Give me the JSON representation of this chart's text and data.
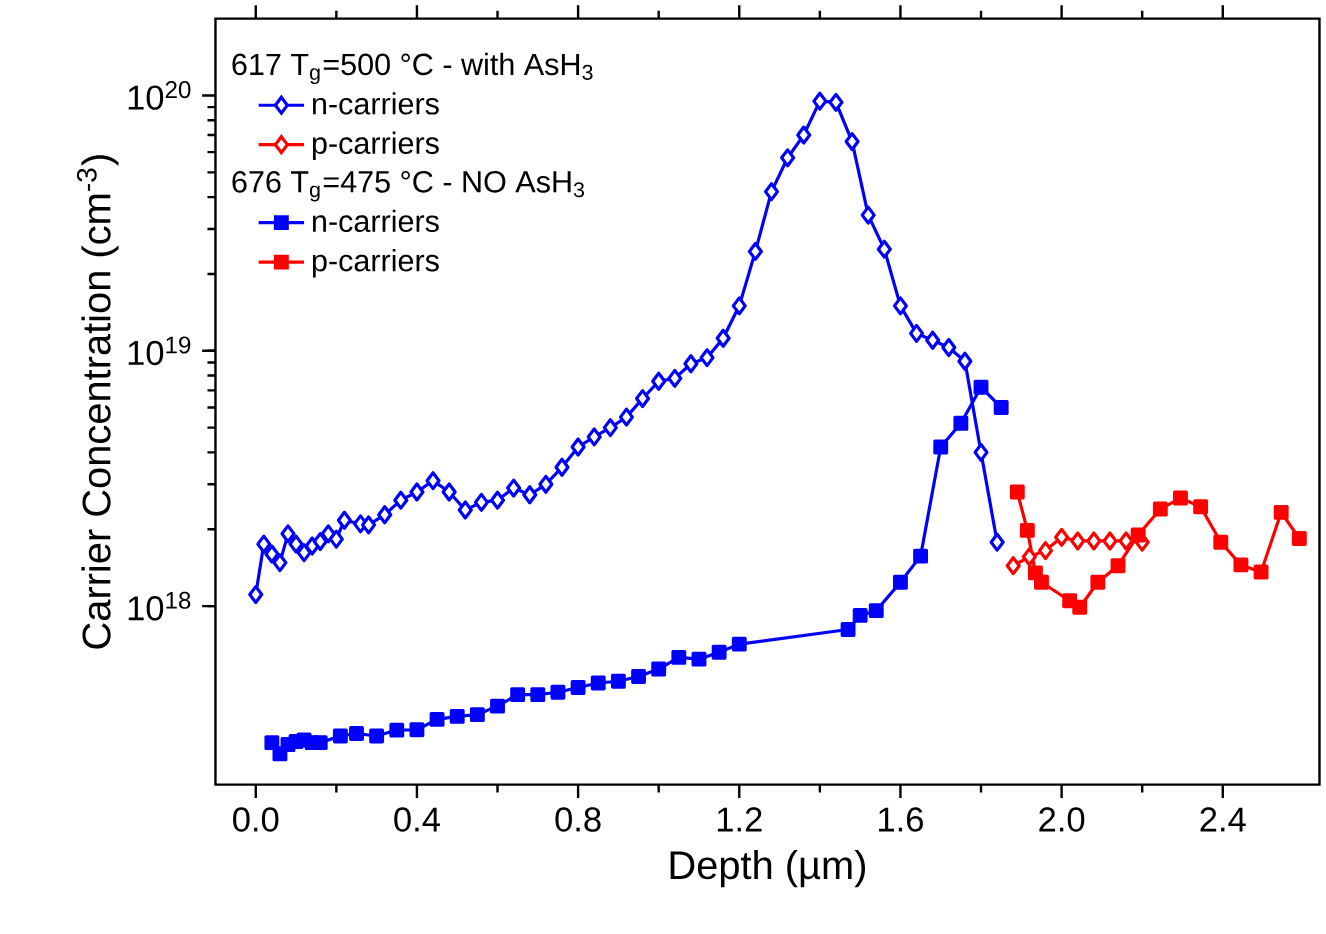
{
  "chart_data": {
    "type": "line",
    "xlabel": "Depth  (µm)",
    "ylabel": "Carrier Concentration  (cm$^{-3}$)",
    "annotations": [
      "617 T$_{g}$=500 °C - with AsH$_{3}$",
      "676 T$_{g}$=475 °C - NO AsH$_{3}$"
    ],
    "xlim": [
      -0.1,
      2.64
    ],
    "ylim": [
      2e+17,
      2e+20
    ],
    "log": "y",
    "grid": false,
    "legend": "top left",
    "line_style": "solid",
    "xticks": [
      {
        "value": 0,
        "label": "0.0"
      },
      {
        "value": 0.4,
        "label": "0.4"
      },
      {
        "value": 0.8,
        "label": "0.8"
      },
      {
        "value": 1.2,
        "label": "1.2"
      },
      {
        "value": 1.6,
        "label": "1.6"
      },
      {
        "value": 2.0,
        "label": "2.0"
      },
      {
        "value": 2.4,
        "label": "2.4"
      }
    ],
    "yticks": [
      {
        "value": 1e+18,
        "label": "10$^{18}$"
      },
      {
        "value": 1e+19,
        "label": "10$^{19}$"
      },
      {
        "value": 1e+20,
        "label": "10$^{20}$"
      }
    ],
    "series": [
      {
        "name": "n-carriers",
        "color": "#0000ff",
        "marker": "diamond",
        "x": [
          0.0,
          0.02,
          0.04,
          0.06,
          0.08,
          0.1,
          0.12,
          0.14,
          0.16,
          0.18,
          0.2,
          0.22,
          0.26,
          0.28,
          0.32,
          0.36,
          0.4,
          0.44,
          0.48,
          0.52,
          0.56,
          0.6,
          0.64,
          0.68,
          0.72,
          0.76,
          0.8,
          0.84,
          0.88,
          0.92,
          0.96,
          1.0,
          1.04,
          1.08,
          1.12,
          1.16,
          1.2,
          1.24,
          1.28,
          1.32,
          1.36,
          1.4,
          1.44,
          1.48,
          1.52,
          1.56,
          1.6,
          1.64,
          1.68,
          1.72,
          1.76,
          1.8,
          1.84
        ],
        "values": [
          1.11e+18,
          1.75e+18,
          1.6e+18,
          1.48e+18,
          1.92e+18,
          1.75e+18,
          1.62e+18,
          1.72e+18,
          1.79e+18,
          1.92e+18,
          1.83e+18,
          2.17e+18,
          2.1e+18,
          2.08e+18,
          2.28e+18,
          2.6e+18,
          2.8e+18,
          3.1e+18,
          2.8e+18,
          2.38e+18,
          2.55e+18,
          2.6e+18,
          2.9e+18,
          2.73e+18,
          3e+18,
          3.5e+18,
          4.2e+18,
          4.6e+18,
          5e+18,
          5.5e+18,
          6.5e+18,
          7.6e+18,
          7.8e+18,
          8.9e+18,
          9.4e+18,
          1.12e+19,
          1.5e+19,
          2.45e+19,
          4.2e+19,
          5.7e+19,
          7e+19,
          9.5e+19,
          9.4e+19,
          6.6e+19,
          3.4e+19,
          2.5e+19,
          1.5e+19,
          1.17e+19,
          1.1e+19,
          1.03e+19,
          9.1e+18,
          4e+18,
          1.78e+18
        ]
      },
      {
        "name": "p-carriers",
        "color": "#ff0000",
        "marker": "diamond",
        "x": [
          1.88,
          1.92,
          1.96,
          2.0,
          2.04,
          2.08,
          2.12,
          2.16,
          2.2
        ],
        "values": [
          1.44e+18,
          1.56e+18,
          1.65e+18,
          1.86e+18,
          1.8e+18,
          1.8e+18,
          1.8e+18,
          1.8e+18,
          1.78e+18
        ]
      },
      {
        "name": "n-carriers",
        "color": "#0000ff",
        "marker": "square",
        "x": [
          0.04,
          0.06,
          0.08,
          0.1,
          0.12,
          0.14,
          0.16,
          0.21,
          0.25,
          0.3,
          0.35,
          0.4,
          0.45,
          0.5,
          0.55,
          0.6,
          0.65,
          0.7,
          0.75,
          0.8,
          0.85,
          0.9,
          0.95,
          1.0,
          1.05,
          1.1,
          1.15,
          1.2,
          1.47,
          1.5,
          1.54,
          1.6,
          1.65,
          1.7,
          1.75,
          1.8,
          1.85
        ],
        "values": [
          2.92e+17,
          2.64e+17,
          2.87e+17,
          2.95e+17,
          2.99e+17,
          2.92e+17,
          2.92e+17,
          3.1e+17,
          3.17e+17,
          3.1e+17,
          3.27e+17,
          3.28e+17,
          3.6e+17,
          3.7e+17,
          3.76e+17,
          4.06e+17,
          4.5e+17,
          4.5e+17,
          4.6e+17,
          4.8e+17,
          5e+17,
          5.08e+17,
          5.3e+17,
          5.67e+17,
          6.3e+17,
          6.2e+17,
          6.6e+17,
          7.1e+17,
          8.1e+17,
          9.2e+17,
          9.6e+17,
          1.24e+18,
          1.57e+18,
          4.2e+18,
          5.2e+18,
          7.2e+18,
          6e+18
        ]
      },
      {
        "name": "p-carriers",
        "color": "#ff0000",
        "marker": "square",
        "x": [
          1.89,
          1.915,
          1.935,
          1.95,
          2.02,
          2.045,
          2.09,
          2.14,
          2.19,
          2.245,
          2.295,
          2.345,
          2.395,
          2.445,
          2.495,
          2.545,
          2.59
        ],
        "values": [
          2.8e+18,
          1.98e+18,
          1.35e+18,
          1.24e+18,
          1.05e+18,
          9.9e+17,
          1.24e+18,
          1.44e+18,
          1.9e+18,
          2.4e+18,
          2.65e+18,
          2.45e+18,
          1.78e+18,
          1.45e+18,
          1.36e+18,
          2.33e+18,
          1.84e+18
        ]
      }
    ]
  }
}
